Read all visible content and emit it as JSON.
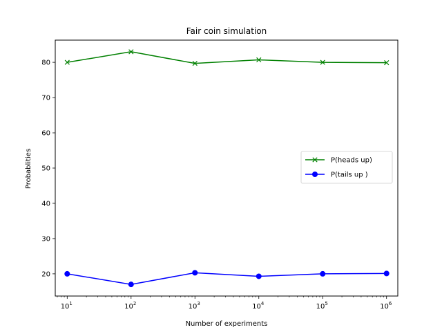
{
  "chart_data": {
    "type": "line",
    "title": "Fair coin simulation",
    "xlabel": "Number of experiments",
    "ylabel": "Probablities",
    "xscale": "log",
    "x": [
      10,
      100,
      1000,
      10000,
      100000,
      1000000
    ],
    "x_tick_labels": [
      {
        "base": "10",
        "exp": "1"
      },
      {
        "base": "10",
        "exp": "2"
      },
      {
        "base": "10",
        "exp": "3"
      },
      {
        "base": "10",
        "exp": "4"
      },
      {
        "base": "10",
        "exp": "5"
      },
      {
        "base": "10",
        "exp": "6"
      }
    ],
    "y_ticks": [
      20,
      30,
      40,
      50,
      60,
      70,
      80
    ],
    "xlim": [
      6.5,
      1500000
    ],
    "ylim": [
      13.7,
      86.3
    ],
    "grid": false,
    "legend_position": "center-right",
    "series": [
      {
        "name": "P(heads up)",
        "color": "#008000",
        "marker": "x",
        "values": [
          80.0,
          83.0,
          79.7,
          80.7,
          80.0,
          79.9
        ]
      },
      {
        "name": "P(tails up )",
        "color": "#0000ff",
        "marker": "o",
        "values": [
          20.0,
          17.0,
          20.3,
          19.3,
          20.0,
          20.1
        ]
      }
    ]
  }
}
